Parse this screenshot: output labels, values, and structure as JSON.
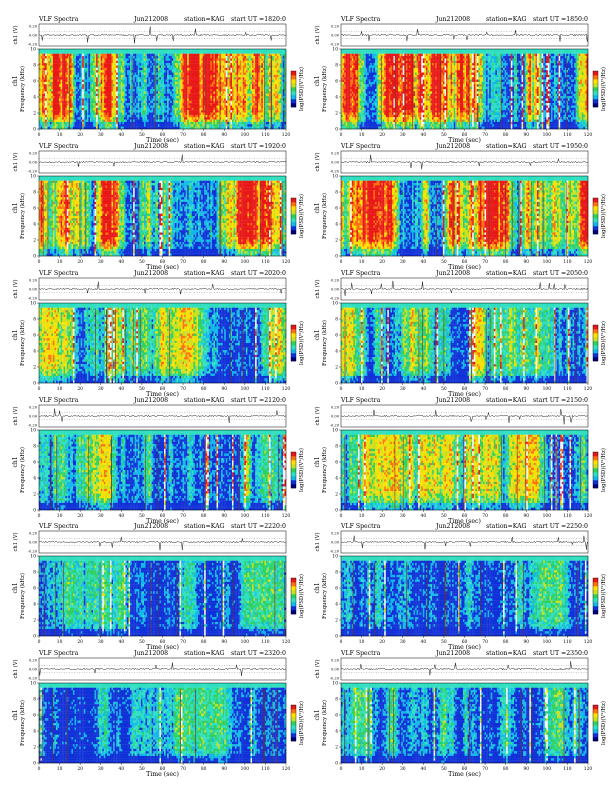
{
  "colors": {
    "spectrogram_scale": [
      "#00007a",
      "#1030d8",
      "#12b8e8",
      "#2fe0c0",
      "#30d060",
      "#c8e020",
      "#ffe000",
      "#ff7010",
      "#e81818",
      "#f8f8f8"
    ],
    "trace": "#000000"
  },
  "chart_data": [
    {
      "type": "heatmap",
      "title": "VLF Spectra",
      "date": "Jun212008",
      "station": "station=KAG",
      "start": "start  UT =1820:0",
      "waveform_label": "ch1 (V)",
      "waveform_ticks": [
        "0.20",
        "0.00",
        "-0.20"
      ],
      "ylabel_prefix": "ch1",
      "ylabel": "Frequency (kHz)",
      "y_ticks": [
        "0",
        "2",
        "4",
        "6",
        "8",
        "10"
      ],
      "ylim": [
        0,
        10
      ],
      "x_ticks": [
        "0",
        "10",
        "20",
        "30",
        "40",
        "50",
        "60",
        "70",
        "80",
        "90",
        "100",
        "110",
        "120"
      ],
      "xlim": [
        0,
        120
      ],
      "xlabel": "Time (sec)",
      "colorbar_label": "log(PSD)(V²/Hz)",
      "intensity": "high"
    },
    {
      "type": "heatmap",
      "title": "VLF Spectra",
      "date": "Jun212008",
      "station": "station=KAG",
      "start": "start  UT =1850:0",
      "waveform_label": "ch1 (V)",
      "waveform_ticks": [
        "0.20",
        "0.00",
        "-0.20"
      ],
      "ylabel_prefix": "ch1",
      "ylabel": "Frequency (kHz)",
      "y_ticks": [
        "0",
        "2",
        "4",
        "6",
        "8",
        "10"
      ],
      "ylim": [
        0,
        10
      ],
      "x_ticks": [
        "0",
        "10",
        "20",
        "30",
        "40",
        "50",
        "60",
        "70",
        "80",
        "90",
        "100",
        "110",
        "120"
      ],
      "xlim": [
        0,
        120
      ],
      "xlabel": "Time (sec)",
      "colorbar_label": "log(PSD)(V²/Hz)",
      "intensity": "high"
    },
    {
      "type": "heatmap",
      "title": "VLF Spectra",
      "date": "Jun212008",
      "station": "station=KAG",
      "start": "start  UT =1920:0",
      "waveform_label": "ch1 (V)",
      "waveform_ticks": [
        "0.20",
        "0.00",
        "-0.20"
      ],
      "ylabel_prefix": "ch1",
      "ylabel": "Frequency (kHz)",
      "y_ticks": [
        "0",
        "2",
        "4",
        "6",
        "8",
        "10"
      ],
      "ylim": [
        0,
        10
      ],
      "x_ticks": [
        "0",
        "10",
        "20",
        "30",
        "40",
        "50",
        "60",
        "70",
        "80",
        "90",
        "100",
        "110",
        "120"
      ],
      "xlim": [
        0,
        120
      ],
      "xlabel": "Time (sec)",
      "colorbar_label": "log(PSD)(V²/Hz)",
      "intensity": "high"
    },
    {
      "type": "heatmap",
      "title": "VLF Spectra",
      "date": "Jun212008",
      "station": "station=KAG",
      "start": "start  UT =1950:0",
      "waveform_label": "ch1 (V)",
      "waveform_ticks": [
        "0.20",
        "0.00",
        "-0.20"
      ],
      "ylabel_prefix": "ch1",
      "ylabel": "Frequency (kHz)",
      "y_ticks": [
        "0",
        "2",
        "4",
        "6",
        "8",
        "10"
      ],
      "ylim": [
        0,
        10
      ],
      "x_ticks": [
        "0",
        "10",
        "20",
        "30",
        "40",
        "50",
        "60",
        "70",
        "80",
        "90",
        "100",
        "110",
        "120"
      ],
      "xlim": [
        0,
        120
      ],
      "xlabel": "Time (sec)",
      "colorbar_label": "log(PSD)(V²/Hz)",
      "intensity": "high"
    },
    {
      "type": "heatmap",
      "title": "VLF Spectra",
      "date": "Jun212008",
      "station": "station=KAG",
      "start": "start  UT =2020:0",
      "waveform_label": "ch1 (V)",
      "waveform_ticks": [
        "0.20",
        "0.00",
        "-0.20"
      ],
      "ylabel_prefix": "ch1",
      "ylabel": "Frequency (kHz)",
      "y_ticks": [
        "0",
        "2",
        "4",
        "6",
        "8",
        "10"
      ],
      "ylim": [
        0,
        10
      ],
      "x_ticks": [
        "0",
        "10",
        "20",
        "30",
        "40",
        "50",
        "60",
        "70",
        "80",
        "90",
        "100",
        "110",
        "120"
      ],
      "xlim": [
        0,
        120
      ],
      "xlabel": "Time (sec)",
      "colorbar_label": "log(PSD)(V²/Hz)",
      "intensity": "medium"
    },
    {
      "type": "heatmap",
      "title": "VLF Spectra",
      "date": "Jun212008",
      "station": "station=KAG",
      "start": "start  UT =2050:0",
      "waveform_label": "ch1 (V)",
      "waveform_ticks": [
        "0.20",
        "0.00",
        "-0.20"
      ],
      "ylabel_prefix": "ch1",
      "ylabel": "Frequency (kHz)",
      "y_ticks": [
        "0",
        "2",
        "4",
        "6",
        "8",
        "10"
      ],
      "ylim": [
        0,
        10
      ],
      "x_ticks": [
        "0",
        "10",
        "20",
        "30",
        "40",
        "50",
        "60",
        "70",
        "80",
        "90",
        "100",
        "110",
        "120"
      ],
      "xlim": [
        0,
        120
      ],
      "xlabel": "Time (sec)",
      "colorbar_label": "log(PSD)(V²/Hz)",
      "intensity": "medium"
    },
    {
      "type": "heatmap",
      "title": "VLF Spectra",
      "date": "Jun212008",
      "station": "station=KAG",
      "start": "start  UT =2120:0",
      "waveform_label": "ch1 (V)",
      "waveform_ticks": [
        "0.20",
        "0.00",
        "-0.20"
      ],
      "ylabel_prefix": "ch1",
      "ylabel": "Frequency (kHz)",
      "y_ticks": [
        "0",
        "2",
        "4",
        "6",
        "8",
        "10"
      ],
      "ylim": [
        0,
        10
      ],
      "x_ticks": [
        "0",
        "10",
        "20",
        "30",
        "40",
        "50",
        "60",
        "70",
        "80",
        "90",
        "100",
        "110",
        "120"
      ],
      "xlim": [
        0,
        120
      ],
      "xlabel": "Time (sec)",
      "colorbar_label": "log(PSD)(V²/Hz)",
      "intensity": "medium"
    },
    {
      "type": "heatmap",
      "title": "VLF Spectra",
      "date": "Jun212008",
      "station": "station=KAG",
      "start": "start  UT =2150:0",
      "waveform_label": "ch1 (V)",
      "waveform_ticks": [
        "0.20",
        "0.00",
        "-0.20"
      ],
      "ylabel_prefix": "ch1",
      "ylabel": "Frequency (kHz)",
      "y_ticks": [
        "0",
        "2",
        "4",
        "6",
        "8",
        "10"
      ],
      "ylim": [
        0,
        10
      ],
      "x_ticks": [
        "0",
        "10",
        "20",
        "30",
        "40",
        "50",
        "60",
        "70",
        "80",
        "90",
        "100",
        "110",
        "120"
      ],
      "xlim": [
        0,
        120
      ],
      "xlabel": "Time (sec)",
      "colorbar_label": "log(PSD)(V²/Hz)",
      "intensity": "medium"
    },
    {
      "type": "heatmap",
      "title": "VLF Spectra",
      "date": "Jun212008",
      "station": "station=KAG",
      "start": "start  UT =2220:0",
      "waveform_label": "ch1 (V)",
      "waveform_ticks": [
        "0.20",
        "0.00",
        "-0.20"
      ],
      "ylabel_prefix": "ch1",
      "ylabel": "Frequency (kHz)",
      "y_ticks": [
        "0",
        "2",
        "4",
        "6",
        "8",
        "10"
      ],
      "ylim": [
        0,
        10
      ],
      "x_ticks": [
        "0",
        "10",
        "20",
        "30",
        "40",
        "50",
        "60",
        "70",
        "80",
        "90",
        "100",
        "110",
        "120"
      ],
      "xlim": [
        0,
        120
      ],
      "xlabel": "Time (sec)",
      "colorbar_label": "log(PSD)(V²/Hz)",
      "intensity": "low"
    },
    {
      "type": "heatmap",
      "title": "VLF Spectra",
      "date": "Jun212008",
      "station": "station=KAG",
      "start": "start  UT =2250:0",
      "waveform_label": "ch1 (V)",
      "waveform_ticks": [
        "0.20",
        "0.00",
        "-0.20"
      ],
      "ylabel_prefix": "ch1",
      "ylabel": "Frequency (kHz)",
      "y_ticks": [
        "0",
        "2",
        "4",
        "6",
        "8",
        "10"
      ],
      "ylim": [
        0,
        10
      ],
      "x_ticks": [
        "0",
        "10",
        "20",
        "30",
        "40",
        "50",
        "60",
        "70",
        "80",
        "90",
        "100",
        "110",
        "120"
      ],
      "xlim": [
        0,
        120
      ],
      "xlabel": "Time (sec)",
      "colorbar_label": "log(PSD)(V²/Hz)",
      "intensity": "low"
    },
    {
      "type": "heatmap",
      "title": "VLF Spectra",
      "date": "Jun212008",
      "station": "station=KAG",
      "start": "start  UT =2320:0",
      "waveform_label": "ch1 (V)",
      "waveform_ticks": [
        "0.20",
        "0.00",
        "-0.20"
      ],
      "ylabel_prefix": "ch1",
      "ylabel": "Frequency (kHz)",
      "y_ticks": [
        "0",
        "2",
        "4",
        "6",
        "8",
        "10"
      ],
      "ylim": [
        0,
        10
      ],
      "x_ticks": [
        "0",
        "10",
        "20",
        "30",
        "40",
        "50",
        "60",
        "70",
        "80",
        "90",
        "100",
        "110",
        "120"
      ],
      "xlim": [
        0,
        120
      ],
      "xlabel": "Time (sec)",
      "colorbar_label": "log(PSD)(V²/Hz)",
      "intensity": "low"
    },
    {
      "type": "heatmap",
      "title": "VLF Spectra",
      "date": "Jun212008",
      "station": "station=KAG",
      "start": "start  UT =2350:0",
      "waveform_label": "ch1 (V)",
      "waveform_ticks": [
        "0.20",
        "0.00",
        "-0.20"
      ],
      "ylabel_prefix": "ch1",
      "ylabel": "Frequency (kHz)",
      "y_ticks": [
        "0",
        "2",
        "4",
        "6",
        "8",
        "10"
      ],
      "ylim": [
        0,
        10
      ],
      "x_ticks": [
        "0",
        "10",
        "20",
        "30",
        "40",
        "50",
        "60",
        "70",
        "80",
        "90",
        "100",
        "110",
        "120"
      ],
      "xlim": [
        0,
        120
      ],
      "xlabel": "Time (sec)",
      "colorbar_label": "log(PSD)(V²/Hz)",
      "intensity": "low"
    }
  ]
}
